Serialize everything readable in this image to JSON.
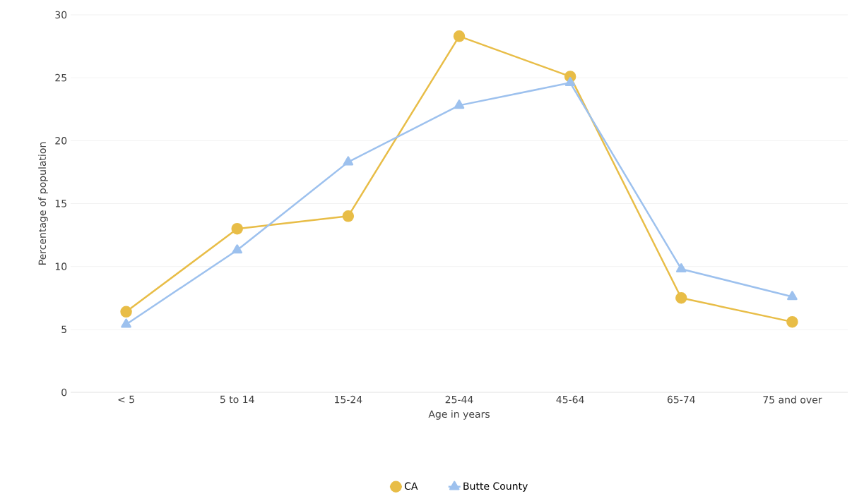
{
  "chart_data": {
    "type": "line",
    "xlabel": "Age in years",
    "ylabel": "Percentage of population",
    "categories": [
      "< 5",
      "5 to 14",
      "15-24",
      "25-44",
      "45-64",
      "65-74",
      "75 and over"
    ],
    "series": [
      {
        "name": "CA",
        "color": "#e8bd47",
        "marker": "circle",
        "values": [
          6.4,
          13.0,
          14.0,
          28.3,
          25.1,
          7.5,
          5.6
        ]
      },
      {
        "name": "Butte County",
        "color": "#9dc1ee",
        "marker": "triangle",
        "values": [
          5.4,
          11.3,
          18.3,
          22.8,
          24.6,
          9.8,
          7.6
        ]
      }
    ],
    "ylim": [
      0,
      30
    ],
    "yticks": [
      0,
      5,
      10,
      15,
      20,
      25,
      30
    ],
    "grid": "y",
    "legend": "bottom"
  }
}
